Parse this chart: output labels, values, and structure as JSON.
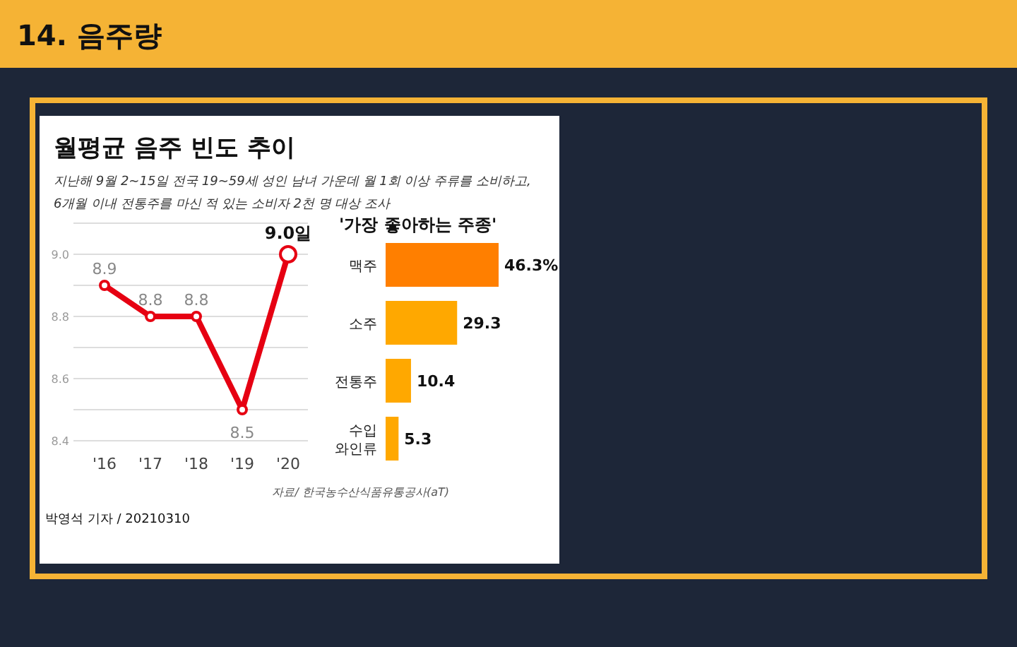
{
  "chart_data": [
    {
      "type": "line",
      "title": "월평균 음주 빈도 추이",
      "subtitle": "지난해 9월 2~15일 전국 19~59세 성인 남녀 가운데  월 1회 이상 주류를 소비하고,\n6개월 이내 전통주를 마신 적 있는 소비자 2천 명 대상 조사",
      "categories": [
        "'16",
        "'17",
        "'18",
        "'19",
        "'20"
      ],
      "series": [
        {
          "color": "#e60012",
          "values": [
            8.9,
            8.8,
            8.8,
            8.5,
            9.0
          ],
          "value_labels": [
            "8.9",
            "8.8",
            "8.8",
            "8.5",
            "9.0일"
          ]
        }
      ],
      "ylim": [
        8.4,
        9.1
      ],
      "yticks": [
        8.4,
        {
          "value": 8.5,
          "label": null
        },
        8.6,
        {
          "value": 8.7,
          "label": null
        },
        8.8,
        {
          "value": 8.9,
          "label": null
        },
        {
          "value": 9.0,
          "label": "9.0"
        },
        {
          "value": 9.1,
          "label": null
        }
      ],
      "grid": "y",
      "marker": "circle",
      "line_style": "solid",
      "annotations": [
        "14. 음주량",
        "자료/ 한국농수산식품유통공사(aT)",
        "박영석 기자 / 20210310"
      ]
    },
    {
      "type": "bar",
      "orientation": "horizontal",
      "title": "'가장 좋아하는 주종'",
      "categories": [
        "맥주",
        "소주",
        "전통주",
        "수입\n와인류"
      ],
      "values": [
        46.3,
        29.3,
        10.4,
        5.3
      ],
      "colors": [
        "#ff7f00",
        "#ffa800",
        "#ffa800",
        "#ffa800"
      ],
      "value_labels": [
        "46.3%",
        "29.3",
        "10.4",
        "5.3"
      ]
    }
  ]
}
